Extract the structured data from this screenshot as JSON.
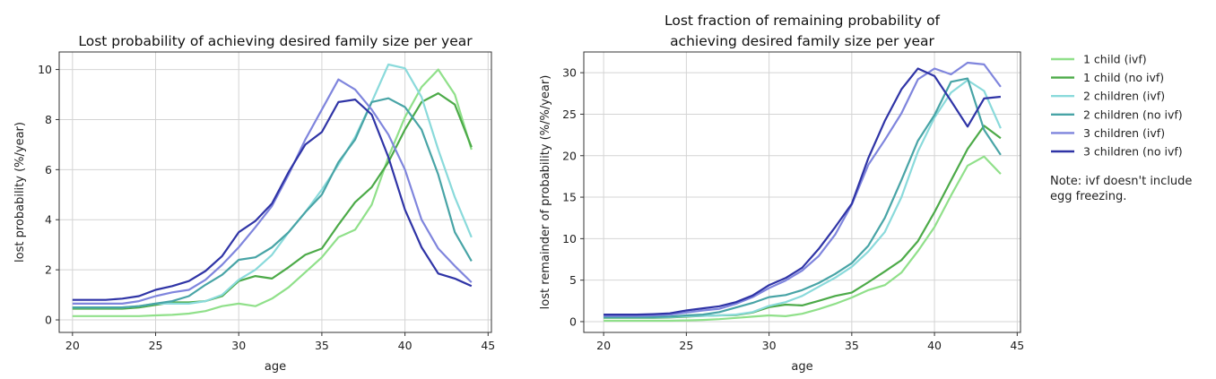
{
  "chart_data": [
    {
      "type": "line",
      "title": "Lost probability of achieving desired family size per year",
      "xlabel": "age",
      "ylabel": "lost probability (%/year)",
      "xlim": [
        19.2,
        45.2
      ],
      "ylim": [
        -0.5,
        10.7
      ],
      "xticks": [
        20,
        25,
        30,
        35,
        40,
        45
      ],
      "yticks": [
        0,
        2,
        4,
        6,
        8,
        10
      ],
      "grid": true,
      "x": [
        20,
        21,
        22,
        23,
        24,
        25,
        26,
        27,
        28,
        29,
        30,
        31,
        32,
        33,
        34,
        35,
        36,
        37,
        38,
        39,
        40,
        41,
        42,
        43,
        44
      ],
      "series": [
        {
          "name": "1 child (ivf)",
          "color": "#90e08a",
          "values": [
            0.15,
            0.15,
            0.15,
            0.15,
            0.15,
            0.18,
            0.2,
            0.25,
            0.35,
            0.55,
            0.65,
            0.55,
            0.85,
            1.3,
            1.9,
            2.5,
            3.3,
            3.6,
            4.6,
            6.5,
            8.1,
            9.3,
            10.0,
            9.0,
            6.8
          ]
        },
        {
          "name": "1 child (no ivf)",
          "color": "#4caa48",
          "values": [
            0.45,
            0.45,
            0.45,
            0.45,
            0.5,
            0.6,
            0.7,
            0.7,
            0.75,
            0.95,
            1.55,
            1.75,
            1.65,
            2.1,
            2.6,
            2.85,
            3.8,
            4.7,
            5.3,
            6.3,
            7.6,
            8.7,
            9.05,
            8.6,
            6.9
          ]
        },
        {
          "name": "2 children (ivf)",
          "color": "#8adadb",
          "values": [
            0.5,
            0.5,
            0.5,
            0.5,
            0.55,
            0.65,
            0.65,
            0.65,
            0.75,
            1.0,
            1.6,
            2.0,
            2.6,
            3.5,
            4.3,
            5.2,
            6.2,
            7.3,
            8.7,
            10.2,
            10.05,
            8.9,
            6.8,
            4.9,
            3.3
          ]
        },
        {
          "name": "2 children (no ivf)",
          "color": "#48a4a6",
          "values": [
            0.5,
            0.5,
            0.5,
            0.5,
            0.55,
            0.65,
            0.75,
            0.95,
            1.4,
            1.8,
            2.4,
            2.5,
            2.9,
            3.5,
            4.3,
            5.0,
            6.3,
            7.2,
            8.7,
            8.85,
            8.5,
            7.6,
            5.8,
            3.5,
            2.35
          ]
        },
        {
          "name": "3 children (ivf)",
          "color": "#7f85dd",
          "values": [
            0.65,
            0.65,
            0.65,
            0.65,
            0.75,
            0.95,
            1.1,
            1.2,
            1.6,
            2.2,
            2.9,
            3.7,
            4.55,
            5.8,
            7.2,
            8.4,
            9.6,
            9.2,
            8.4,
            7.4,
            6.0,
            4.0,
            2.85,
            2.15,
            1.5
          ]
        },
        {
          "name": "3 children (no ivf)",
          "color": "#2f34a6",
          "values": [
            0.8,
            0.8,
            0.8,
            0.85,
            0.95,
            1.2,
            1.35,
            1.55,
            1.95,
            2.55,
            3.5,
            3.95,
            4.65,
            5.9,
            7.0,
            7.5,
            8.7,
            8.8,
            8.2,
            6.5,
            4.4,
            2.9,
            1.85,
            1.65,
            1.35
          ]
        }
      ]
    },
    {
      "type": "line",
      "title": "Lost fraction of remaining probability of\nachieving desired family size per year",
      "xlabel": "age",
      "ylabel": "lost remainder of probability (%/%/year)",
      "xlim": [
        18.8,
        45.2
      ],
      "ylim": [
        -1.3,
        32.5
      ],
      "xticks": [
        20,
        25,
        30,
        35,
        40,
        45
      ],
      "yticks": [
        0,
        5,
        10,
        15,
        20,
        25,
        30
      ],
      "grid": true,
      "x": [
        20,
        21,
        22,
        23,
        24,
        25,
        26,
        27,
        28,
        29,
        30,
        31,
        32,
        33,
        34,
        35,
        36,
        37,
        38,
        39,
        40,
        41,
        42,
        43,
        44
      ],
      "series": [
        {
          "name": "1 child (ivf)",
          "color": "#90e08a",
          "values": [
            0.1,
            0.1,
            0.1,
            0.1,
            0.1,
            0.15,
            0.2,
            0.3,
            0.45,
            0.6,
            0.75,
            0.65,
            0.95,
            1.5,
            2.15,
            2.9,
            3.8,
            4.4,
            5.9,
            8.5,
            11.4,
            15.2,
            18.8,
            19.9,
            17.8
          ]
        },
        {
          "name": "1 child (no ivf)",
          "color": "#4caa48",
          "values": [
            0.45,
            0.45,
            0.45,
            0.45,
            0.5,
            0.6,
            0.7,
            0.75,
            0.8,
            1.1,
            1.75,
            2.05,
            1.95,
            2.5,
            3.1,
            3.5,
            4.75,
            6.05,
            7.4,
            9.7,
            13.2,
            17.0,
            20.8,
            23.6,
            22.1
          ]
        },
        {
          "name": "2 children (ivf)",
          "color": "#8adadb",
          "values": [
            0.5,
            0.5,
            0.5,
            0.5,
            0.55,
            0.65,
            0.7,
            0.75,
            0.85,
            1.15,
            1.9,
            2.35,
            3.1,
            4.2,
            5.3,
            6.6,
            8.45,
            10.8,
            15.0,
            20.5,
            24.6,
            27.6,
            29.1,
            27.8,
            23.3
          ]
        },
        {
          "name": "2 children (no ivf)",
          "color": "#48a4a6",
          "values": [
            0.55,
            0.55,
            0.55,
            0.55,
            0.6,
            0.75,
            0.85,
            1.15,
            1.7,
            2.25,
            2.95,
            3.2,
            3.8,
            4.65,
            5.75,
            7.05,
            9.15,
            12.5,
            17.05,
            21.8,
            24.9,
            28.9,
            29.3,
            23.1,
            20.1
          ]
        },
        {
          "name": "3 children (ivf)",
          "color": "#7f85dd",
          "values": [
            0.7,
            0.7,
            0.7,
            0.75,
            0.85,
            1.1,
            1.35,
            1.55,
            2.15,
            2.95,
            4.05,
            4.95,
            6.15,
            7.9,
            10.5,
            14.1,
            18.9,
            21.9,
            25.1,
            29.2,
            30.5,
            29.8,
            31.2,
            31.0,
            28.3
          ]
        },
        {
          "name": "3 children (no ivf)",
          "color": "#2f34a6",
          "values": [
            0.85,
            0.85,
            0.85,
            0.9,
            1.0,
            1.35,
            1.6,
            1.85,
            2.35,
            3.15,
            4.4,
            5.25,
            6.5,
            8.75,
            11.4,
            14.2,
            19.7,
            24.2,
            28.0,
            30.5,
            29.6,
            26.6,
            23.5,
            26.9,
            27.1
          ]
        }
      ]
    }
  ],
  "legend": {
    "placement": "right",
    "entries": [
      {
        "label": "1 child (ivf)",
        "color": "#90e08a"
      },
      {
        "label": "1 child (no ivf)",
        "color": "#4caa48"
      },
      {
        "label": "2 children (ivf)",
        "color": "#8adadb"
      },
      {
        "label": "2 children (no ivf)",
        "color": "#48a4a6"
      },
      {
        "label": "3 children (ivf)",
        "color": "#7f85dd"
      },
      {
        "label": "3 children (no ivf)",
        "color": "#2f34a6"
      }
    ]
  },
  "note": "Note: ivf doesn't include egg freezing."
}
